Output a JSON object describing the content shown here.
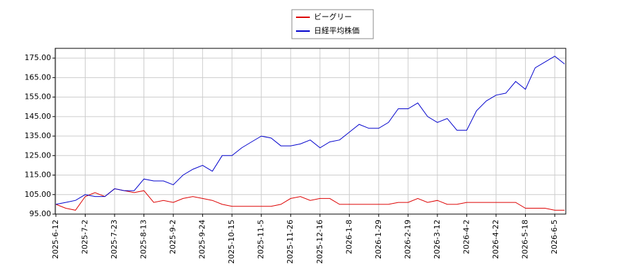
{
  "chart_data": {
    "type": "line",
    "categories": [
      "2025-6-12",
      null,
      null,
      "2025-7-2",
      null,
      null,
      "2025-7-23",
      null,
      null,
      "2025-8-13",
      null,
      null,
      "2025-9-2",
      null,
      null,
      "2025-9-24",
      null,
      null,
      "2025-10-15",
      null,
      null,
      "2025-11-5",
      null,
      null,
      "2025-11-26",
      null,
      null,
      "2025-12-16",
      null,
      null,
      "2026-1-8",
      null,
      null,
      "2026-1-29",
      null,
      null,
      "2026-2-19",
      null,
      null,
      "2026-3-12",
      null,
      null,
      "2026-4-2",
      null,
      null,
      "2026-4-22",
      null,
      null,
      "2026-5-18",
      null,
      null,
      "2026-6-5",
      null
    ],
    "series": [
      {
        "name": "ビーグリー",
        "color": "#dd0000",
        "values": [
          100,
          98,
          97,
          104,
          106,
          104,
          108,
          107,
          106,
          107,
          101,
          102,
          101,
          103,
          104,
          103,
          102,
          100,
          99,
          99,
          99,
          99,
          99,
          100,
          103,
          104,
          102,
          103,
          103,
          100,
          100,
          100,
          100,
          100,
          100,
          101,
          101,
          103,
          101,
          102,
          100,
          100,
          101,
          101,
          101,
          101,
          101,
          101,
          98,
          98,
          98,
          97,
          97
        ]
      },
      {
        "name": "日経平均株価",
        "color": "#0000cc",
        "values": [
          100,
          101,
          102,
          105,
          104,
          104,
          108,
          107,
          107,
          113,
          112,
          112,
          110,
          115,
          118,
          120,
          117,
          125,
          125,
          129,
          132,
          135,
          134,
          130,
          130,
          131,
          133,
          129,
          132,
          133,
          137,
          141,
          139,
          139,
          142,
          149,
          149,
          152,
          145,
          142,
          144,
          138,
          138,
          148,
          153,
          156,
          157,
          163,
          159,
          170,
          173,
          176,
          172
        ]
      }
    ],
    "ylim": [
      95,
      180
    ],
    "yticks": [
      {
        "value": 95,
        "label": "95.00"
      },
      {
        "value": 105,
        "label": "105.00"
      },
      {
        "value": 115,
        "label": "115.00"
      },
      {
        "value": 125,
        "label": "125.00"
      },
      {
        "value": 135,
        "label": "135.00"
      },
      {
        "value": 145,
        "label": "145.00"
      },
      {
        "value": 155,
        "label": "155.00"
      },
      {
        "value": 165,
        "label": "165.00"
      },
      {
        "value": 175,
        "label": "175.00"
      }
    ],
    "grid": true,
    "legend": "top"
  }
}
